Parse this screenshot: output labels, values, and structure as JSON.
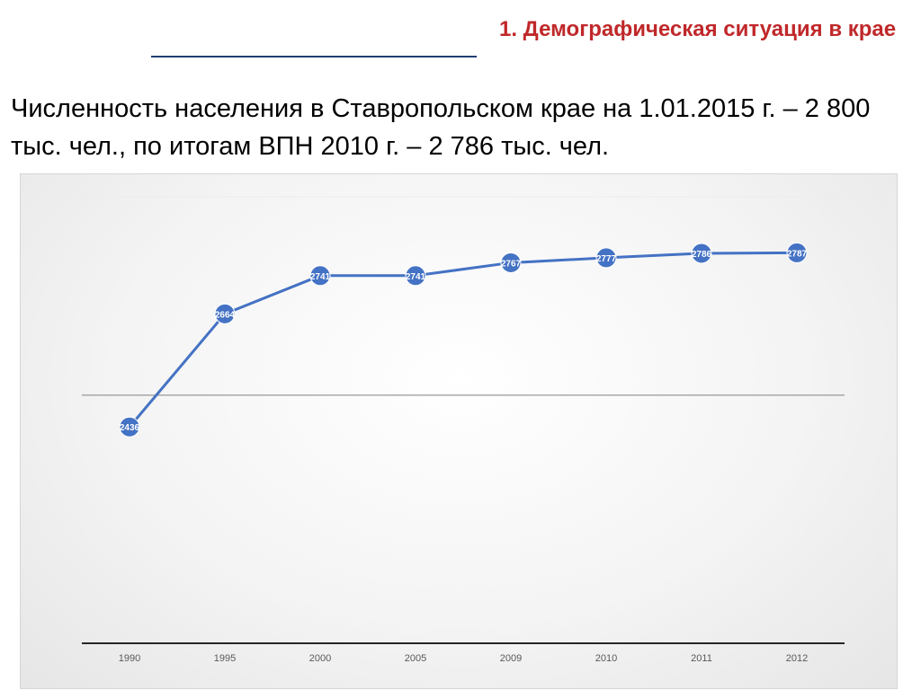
{
  "header": {
    "title": "1. Демографическая ситуация в крае",
    "subtitle": "Численность населения в Ставропольском крае на 1.01.2015 г. – 2 800 тыс. чел., по итогам ВПН 2010 г. – 2 786 тыс. чел."
  },
  "colors": {
    "title": "#c0282a",
    "rule": "#1f3f6e",
    "series": "#4472c4",
    "gridline": "#808080",
    "axis": "#262626"
  },
  "chart_data": {
    "type": "line",
    "title": "",
    "xlabel": "",
    "ylabel": "",
    "categories": [
      "1990",
      "1995",
      "2000",
      "2005",
      "2009",
      "2010",
      "2011",
      "2012"
    ],
    "series": [
      {
        "values": [
          2436,
          2664,
          2741,
          2741,
          2767,
          2777,
          2786,
          2787
        ]
      }
    ],
    "data_labels": true,
    "marker": "circle",
    "ylim": [
      2000,
      2900
    ],
    "gridlines": [
      2500
    ],
    "grid": true,
    "legend": "none"
  }
}
